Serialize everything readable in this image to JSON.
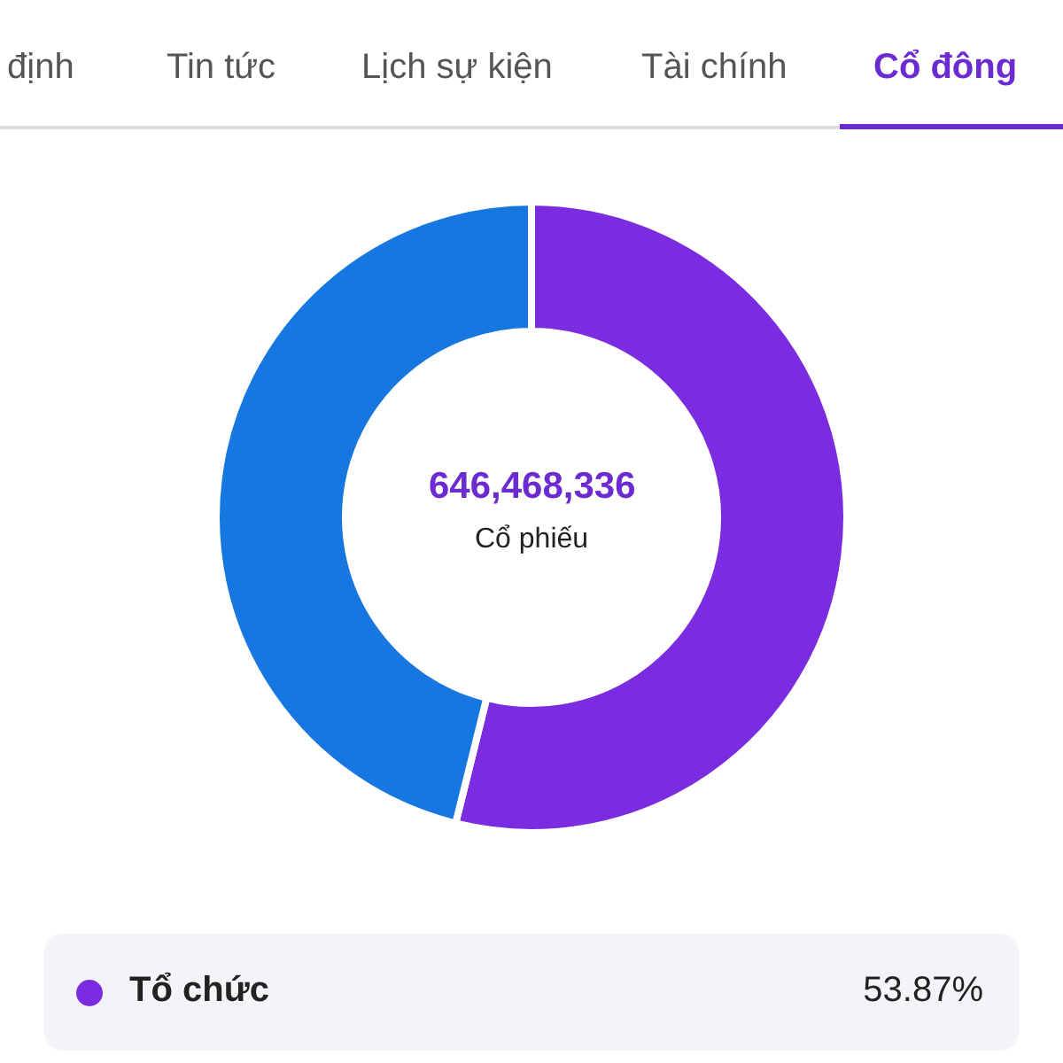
{
  "chart_data": {
    "type": "donut",
    "title": "646,468,336",
    "subtitle": "Cổ phiếu",
    "annotations": [
      "định",
      "Tin tức",
      "Lịch sự kiện",
      "Tài chính",
      "Cổ đông"
    ],
    "categories": [
      "Tổ chức",
      null
    ],
    "values": [
      53.87,
      46.13
    ],
    "colors": [
      "#7b2be0",
      "#1677e0"
    ],
    "value_labels": [
      "53.87%",
      null
    ],
    "legend": "bottom"
  }
}
